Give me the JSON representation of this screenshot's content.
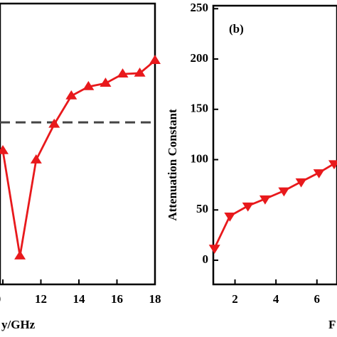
{
  "chart_data": [
    {
      "type": "line",
      "x_label": "y/GHz",
      "x": [
        10,
        10.9,
        11.75,
        12.7,
        13.6,
        14.5,
        15.4,
        16.3,
        17.2,
        18
      ],
      "series": [
        {
          "color": "#e8191c",
          "marker": "triangle-up",
          "values": [
            0.476,
            0.101,
            0.443,
            0.57,
            0.671,
            0.704,
            0.716,
            0.749,
            0.752,
            0.797
          ]
        }
      ],
      "reference_line": {
        "value": 0.577,
        "color": "#444444",
        "style": "dashed"
      },
      "xlim": [
        9.85,
        18
      ],
      "ylim": [
        0,
        1
      ],
      "xticks": [
        {
          "value": 10,
          "label": "0"
        },
        12,
        14,
        16,
        18
      ]
    },
    {
      "type": "line",
      "annotation": "(b)",
      "y_label": "Attenuation Constant",
      "x_label": "F",
      "x": [
        1,
        1.75,
        2.63,
        3.47,
        4.39,
        5.23,
        6.1,
        6.84
      ],
      "series": [
        {
          "color": "#e8191c",
          "marker": "triangle-down",
          "values": [
            12,
            44,
            54,
            61,
            69,
            78,
            87,
            96
          ]
        }
      ],
      "xlim": [
        0.94,
        6.98
      ],
      "ylim": [
        -24,
        253
      ],
      "xticks": [
        2,
        4,
        6
      ],
      "yticks": [
        0,
        50,
        100,
        150,
        200,
        250
      ]
    }
  ]
}
